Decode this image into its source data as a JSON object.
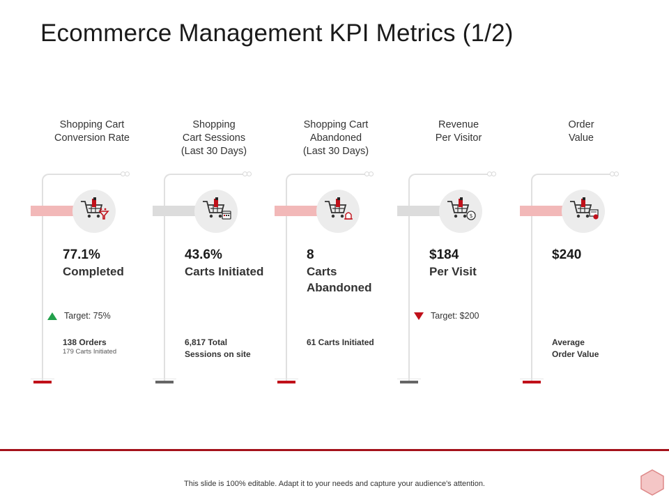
{
  "title": "Ecommerce Management KPI Metrics (1/2)",
  "footer": "This slide is 100% editable. Adapt it to your needs and capture your audience's attention.",
  "colors": {
    "accent": "#a4121b",
    "tab_red": "#f2b8b8",
    "tab_grey": "#dcdcdc",
    "up": "#22a04b",
    "down": "#c0101a"
  },
  "kpis": [
    {
      "title_lines": [
        "Shopping Cart",
        "Conversion Rate",
        ""
      ],
      "value": "77.1%",
      "label_lines": [
        "Completed",
        ""
      ],
      "target": "Target: 75%",
      "target_dir": "up",
      "detail_lines": [
        "138 Orders",
        ""
      ],
      "detail_sub": "179 Carts Initiated",
      "icon": "cart-funnel-icon",
      "tab": "red"
    },
    {
      "title_lines": [
        "Shopping",
        "Cart Sessions",
        "(Last 30 Days)"
      ],
      "value": "43.6%",
      "label_lines": [
        "Carts Initiated",
        ""
      ],
      "target": "",
      "target_dir": "",
      "detail_lines": [
        "6,817 Total",
        "Sessions on site"
      ],
      "detail_sub": "",
      "icon": "cart-calendar-icon",
      "tab": "grey"
    },
    {
      "title_lines": [
        "Shopping Cart",
        "Abandoned",
        "(Last 30 Days)"
      ],
      "value": "8",
      "label_lines": [
        "Carts",
        "Abandoned"
      ],
      "target": "",
      "target_dir": "",
      "detail_lines": [
        "61 Carts Initiated",
        ""
      ],
      "detail_sub": "",
      "icon": "cart-bell-icon",
      "tab": "red"
    },
    {
      "title_lines": [
        "Revenue",
        "Per Visitor",
        ""
      ],
      "value": "$184",
      "label_lines": [
        "Per Visit",
        ""
      ],
      "target": "Target: $200",
      "target_dir": "down",
      "detail_lines": [
        "",
        ""
      ],
      "detail_sub": "",
      "icon": "cart-dollar-icon",
      "tab": "grey"
    },
    {
      "title_lines": [
        "Order",
        "Value",
        ""
      ],
      "value": "$240",
      "label_lines": [
        "",
        ""
      ],
      "target": "",
      "target_dir": "",
      "detail_lines": [
        "Average",
        "Order Value"
      ],
      "detail_sub": "",
      "icon": "cart-register-icon",
      "tab": "red"
    }
  ]
}
